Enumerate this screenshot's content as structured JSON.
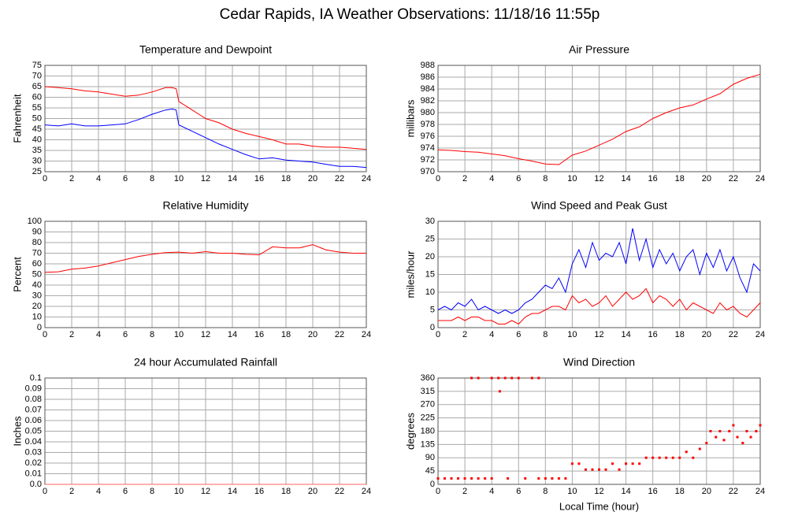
{
  "title": "Cedar Rapids, IA Weather Observations: 11/18/16 11:55p",
  "chart_data": [
    {
      "type": "line",
      "title": "Temperature and Dewpoint",
      "ylabel": "Fahrenheit",
      "x": [
        0,
        1,
        2,
        3,
        4,
        5,
        6,
        7,
        8,
        9,
        9.5,
        9.8,
        10,
        11,
        12,
        13,
        14,
        15,
        16,
        17,
        18,
        19,
        20,
        21,
        22,
        23,
        24
      ],
      "series": [
        {
          "color": "#ff0000",
          "values": [
            65,
            64.5,
            64,
            63,
            62.5,
            61.5,
            60.5,
            61,
            62.5,
            64.5,
            64.5,
            64,
            58,
            54,
            50,
            48,
            45,
            43,
            41.5,
            40,
            38,
            38,
            37,
            36.5,
            36.5,
            36,
            35.5
          ]
        },
        {
          "color": "#0000ff",
          "values": [
            47,
            46.5,
            47.5,
            46.5,
            46.5,
            47,
            47.5,
            49.5,
            52,
            54,
            54.5,
            54,
            47,
            44,
            41,
            38,
            35.5,
            33,
            31,
            31.5,
            30.5,
            30,
            29.5,
            28.5,
            27.5,
            27.5,
            27
          ]
        }
      ],
      "xlim": [
        0,
        24
      ],
      "xticks": [
        0,
        2,
        4,
        6,
        8,
        10,
        12,
        14,
        16,
        18,
        20,
        22,
        24
      ],
      "ylim": [
        25,
        75
      ],
      "yticks": [
        25,
        30,
        35,
        40,
        45,
        50,
        55,
        60,
        65,
        70,
        75
      ],
      "grid": true
    },
    {
      "type": "line",
      "title": "Air Pressure",
      "ylabel": "millibars",
      "x": [
        0,
        1,
        2,
        3,
        4,
        5,
        6,
        7,
        8,
        9,
        10,
        11,
        12,
        13,
        14,
        15,
        16,
        17,
        18,
        19,
        20,
        21,
        22,
        23,
        24
      ],
      "series": [
        {
          "color": "#ff0000",
          "values": [
            973.7,
            973.6,
            973.4,
            973.3,
            973.0,
            972.7,
            972.2,
            971.8,
            971.3,
            971.2,
            972.8,
            973.5,
            974.5,
            975.5,
            976.8,
            977.6,
            979.0,
            980.0,
            980.8,
            981.3,
            982.3,
            983.2,
            984.8,
            985.8,
            986.5
          ]
        }
      ],
      "xlim": [
        0,
        24
      ],
      "xticks": [
        0,
        2,
        4,
        6,
        8,
        10,
        12,
        14,
        16,
        18,
        20,
        22,
        24
      ],
      "ylim": [
        970,
        988
      ],
      "yticks": [
        970,
        972,
        974,
        976,
        978,
        980,
        982,
        984,
        986,
        988
      ],
      "grid": true
    },
    {
      "type": "line",
      "title": "Relative Humidity",
      "ylabel": "Percent",
      "x": [
        0,
        1,
        2,
        3,
        4,
        5,
        6,
        7,
        8,
        9,
        10,
        11,
        12,
        13,
        14,
        15,
        16,
        17,
        18,
        19,
        20,
        21,
        22,
        23,
        24
      ],
      "series": [
        {
          "color": "#ff0000",
          "values": [
            52,
            52.5,
            55,
            56,
            58,
            61,
            64,
            67,
            69,
            70.5,
            71,
            70,
            71.5,
            70,
            70,
            69,
            68.5,
            76,
            75,
            75,
            78,
            73,
            71,
            70,
            70
          ]
        }
      ],
      "xlim": [
        0,
        24
      ],
      "xticks": [
        0,
        2,
        4,
        6,
        8,
        10,
        12,
        14,
        16,
        18,
        20,
        22,
        24
      ],
      "ylim": [
        0,
        100
      ],
      "yticks": [
        0,
        10,
        20,
        30,
        40,
        50,
        60,
        70,
        80,
        90,
        100
      ],
      "grid": true
    },
    {
      "type": "line",
      "title": "Wind Speed and Peak Gust",
      "ylabel": "miles/hour",
      "x": [
        0,
        0.5,
        1,
        1.5,
        2,
        2.5,
        3,
        3.5,
        4,
        4.5,
        5,
        5.5,
        6,
        6.5,
        7,
        7.5,
        8,
        8.5,
        9,
        9.5,
        10,
        10.5,
        11,
        11.5,
        12,
        12.5,
        13,
        13.5,
        14,
        14.5,
        15,
        15.5,
        16,
        16.5,
        17,
        17.5,
        18,
        18.5,
        19,
        19.5,
        20,
        20.5,
        21,
        21.5,
        22,
        22.5,
        23,
        23.5,
        24
      ],
      "series": [
        {
          "color": "#0000ff",
          "values": [
            5,
            6,
            5,
            7,
            6,
            8,
            5,
            6,
            5,
            4,
            5,
            4,
            5,
            7,
            8,
            10,
            12,
            11,
            14,
            10,
            18,
            22,
            17,
            24,
            19,
            21,
            20,
            24,
            18,
            28,
            19,
            25,
            17,
            22,
            18,
            21,
            16,
            20,
            22,
            15,
            21,
            17,
            22,
            16,
            20,
            14,
            10,
            18,
            16
          ]
        },
        {
          "color": "#ff0000",
          "values": [
            2,
            2,
            2,
            3,
            2,
            3,
            3,
            2,
            2,
            1,
            1,
            2,
            1,
            3,
            4,
            4,
            5,
            6,
            6,
            5,
            9,
            7,
            8,
            6,
            7,
            9,
            6,
            8,
            10,
            8,
            9,
            11,
            7,
            9,
            8,
            6,
            8,
            5,
            7,
            6,
            5,
            4,
            7,
            5,
            6,
            4,
            3,
            5,
            7
          ]
        }
      ],
      "xlim": [
        0,
        24
      ],
      "xticks": [
        0,
        2,
        4,
        6,
        8,
        10,
        12,
        14,
        16,
        18,
        20,
        22,
        24
      ],
      "ylim": [
        0,
        30
      ],
      "yticks": [
        0,
        5,
        10,
        15,
        20,
        25,
        30
      ],
      "grid": true
    },
    {
      "type": "line",
      "title": "24 hour Accumulated Rainfall",
      "ylabel": "Inches",
      "x": [
        0,
        24
      ],
      "series": [
        {
          "color": "#ff6060",
          "values": [
            0,
            0
          ]
        }
      ],
      "xlim": [
        0,
        24
      ],
      "xticks": [
        0,
        2,
        4,
        6,
        8,
        10,
        12,
        14,
        16,
        18,
        20,
        22,
        24
      ],
      "ylim": [
        0,
        0.1
      ],
      "yticks": [
        {
          "value": 0,
          "label": "0.0"
        },
        0.01,
        0.02,
        0.03,
        0.04,
        0.05,
        0.06,
        0.07,
        0.08,
        0.09,
        0.1
      ],
      "grid": true
    },
    {
      "type": "scatter",
      "title": "Wind Direction",
      "ylabel": "degrees",
      "xlabel": "Local Time (hour)",
      "x": [
        0,
        0.5,
        1,
        1.5,
        2,
        2.5,
        2.5,
        3,
        3,
        3.5,
        4,
        4,
        4.5,
        4.6,
        5,
        5.2,
        5.5,
        6,
        6.5,
        7,
        7.5,
        7.5,
        8,
        8.5,
        9,
        9.5,
        10,
        10.5,
        11,
        11.5,
        12,
        12.5,
        13,
        13.5,
        14,
        14.5,
        15,
        15.5,
        16,
        16.5,
        17,
        17.5,
        18,
        18.5,
        19,
        19.5,
        20,
        20.3,
        20.7,
        21,
        21.3,
        21.7,
        22,
        22.3,
        22.7,
        23,
        23.3,
        23.7,
        24
      ],
      "series": [
        {
          "color": "#ff0000",
          "values": [
            20,
            20,
            20,
            20,
            20,
            360,
            20,
            20,
            360,
            20,
            360,
            20,
            360,
            315,
            360,
            20,
            360,
            360,
            20,
            360,
            360,
            20,
            20,
            20,
            20,
            20,
            70,
            70,
            50,
            50,
            50,
            50,
            70,
            50,
            70,
            70,
            70,
            90,
            90,
            90,
            90,
            90,
            90,
            110,
            90,
            120,
            140,
            180,
            160,
            180,
            150,
            180,
            200,
            160,
            140,
            180,
            160,
            180,
            200
          ]
        }
      ],
      "xlim": [
        0,
        24
      ],
      "xticks": [
        0,
        2,
        4,
        6,
        8,
        10,
        12,
        14,
        16,
        18,
        20,
        22,
        24
      ],
      "ylim": [
        0,
        360
      ],
      "yticks": [
        0,
        45,
        90,
        135,
        180,
        225,
        270,
        315,
        360
      ],
      "grid": true
    }
  ]
}
